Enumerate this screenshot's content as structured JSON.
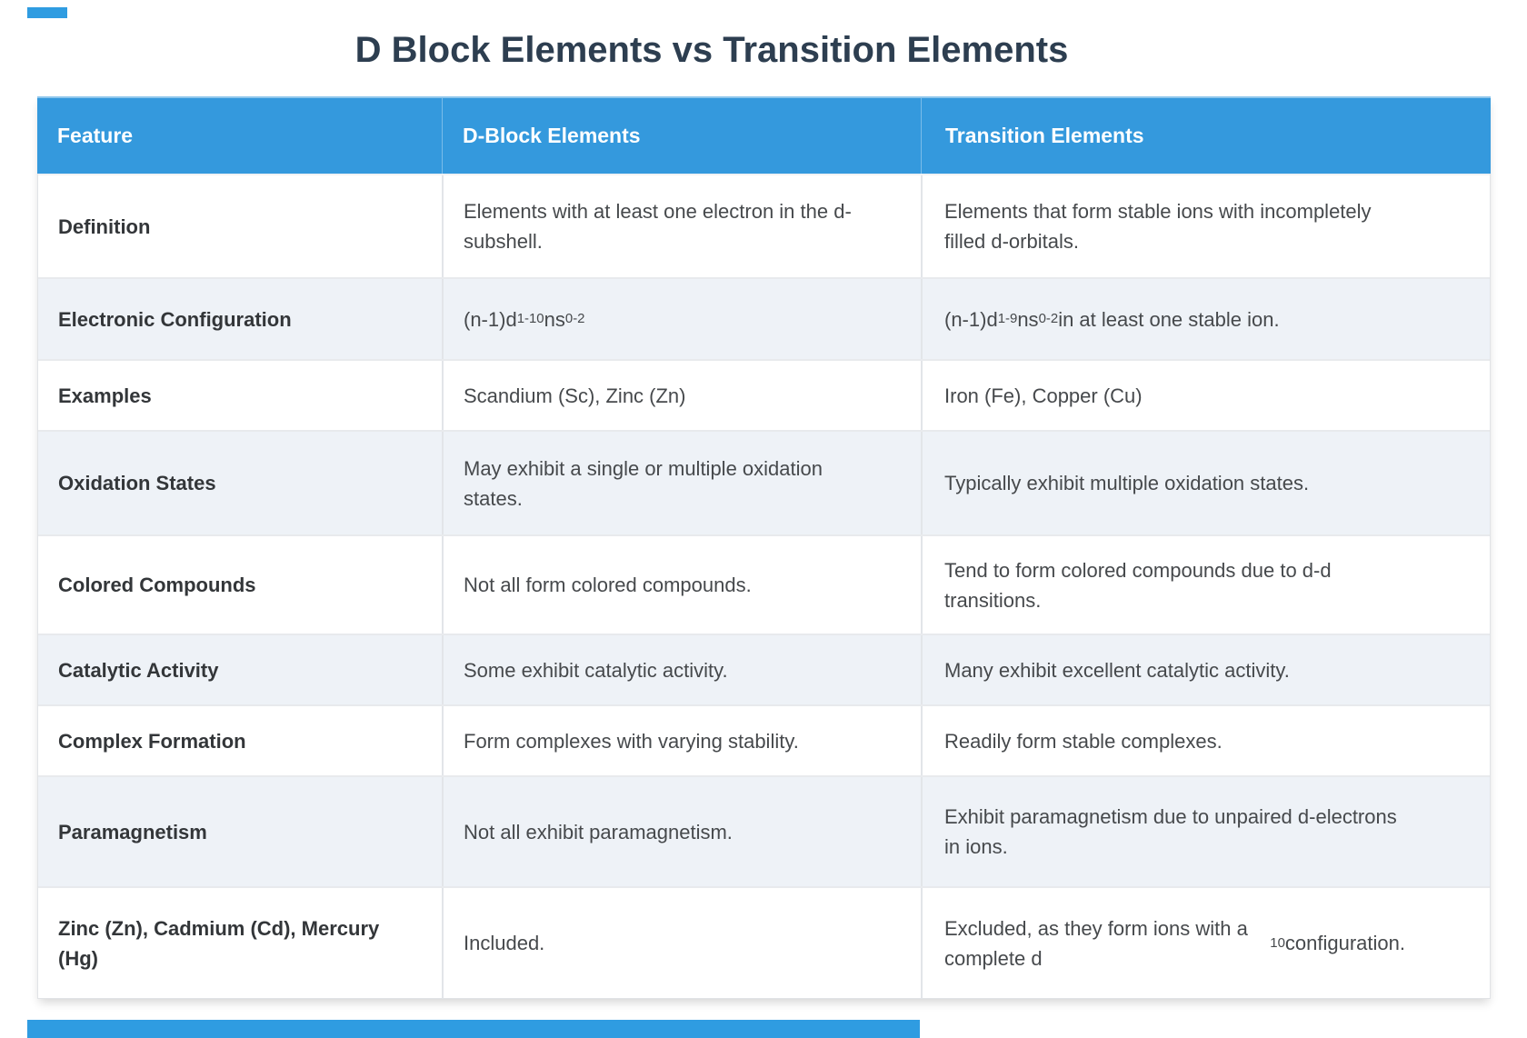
{
  "page": {
    "title": "D Block Elements vs Transition Elements"
  },
  "colors": {
    "header_blue": "#3499dd",
    "title_navy": "#2d3e50",
    "alt_row_bg": "#eef2f7",
    "decor_blue": "#2f9ce1"
  },
  "table": {
    "headers": [
      "Feature",
      "D-Block Elements",
      "Transition Elements"
    ],
    "rows": [
      {
        "feature": "Definition",
        "dblock": "Elements with at least one electron in the d-subshell.",
        "transition": "Elements that form stable ions with incompletely filled d-orbitals."
      },
      {
        "feature": "Electronic Configuration",
        "dblock": "(n-1)d^{1-10}ns^{0-2}",
        "transition": "(n-1)d^{1-9}ns^{0-2} in at least one stable ion."
      },
      {
        "feature": "Examples",
        "dblock": "Scandium (Sc), Zinc (Zn)",
        "transition": "Iron (Fe), Copper (Cu)"
      },
      {
        "feature": "Oxidation States",
        "dblock": "May exhibit a single or multiple oxidation states.",
        "transition": "Typically exhibit multiple oxidation states."
      },
      {
        "feature": "Colored Compounds",
        "dblock": "Not all form colored compounds.",
        "transition": "Tend to form colored compounds due to d-d transitions."
      },
      {
        "feature": "Catalytic Activity",
        "dblock": "Some exhibit catalytic activity.",
        "transition": "Many exhibit excellent catalytic activity."
      },
      {
        "feature": "Complex Formation",
        "dblock": "Form complexes with varying stability.",
        "transition": "Readily form stable complexes."
      },
      {
        "feature": "Paramagnetism",
        "dblock": "Not all exhibit paramagnetism.",
        "transition": "Exhibit paramagnetism due to unpaired d-electrons in ions."
      },
      {
        "feature": "Zinc (Zn), Cadmium (Cd), Mercury (Hg)",
        "dblock": "Included.",
        "transition": "Excluded, as they form ions with a complete d^{10} configuration."
      }
    ]
  }
}
